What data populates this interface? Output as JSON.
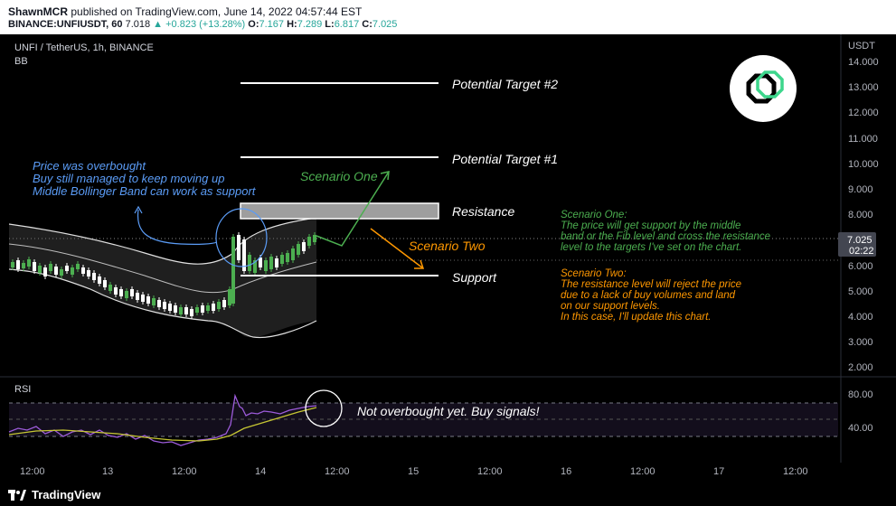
{
  "header": {
    "author": "ShawnMCR",
    "published": "published on TradingView.com, June 14, 2022 04:57:44 EST",
    "symbol": "BINANCE:UNFIUSDT, 60",
    "last": "7.018",
    "change": "+0.823 (+13.28%)",
    "o_label": "O:",
    "o": "7.167",
    "h_label": "H:",
    "h": "7.289",
    "l_label": "L:",
    "l": "6.817",
    "c_label": "C:",
    "c": "7.025"
  },
  "legend": {
    "title": "UNFI / TetherUS, 1h, BINANCE",
    "indicator": "BB",
    "rsi": "RSI"
  },
  "price_axis": {
    "currency": "USDT",
    "ticks": [
      "14.000",
      "13.000",
      "12.000",
      "11.000",
      "10.000",
      "9.000",
      "8.000",
      "7.000",
      "6.000",
      "5.000",
      "4.000",
      "3.000",
      "2.000"
    ],
    "current_price": "7.025",
    "countdown": "02:22"
  },
  "rsi_axis": {
    "ticks": [
      "80.00",
      "40.00"
    ]
  },
  "time_axis": {
    "ticks": [
      "12:00",
      "13",
      "12:00",
      "14",
      "12:00",
      "15",
      "12:00",
      "16",
      "12:00",
      "17",
      "12:00"
    ]
  },
  "annotations": {
    "target2": "Potential Target #2",
    "target1": "Potential Target #1",
    "resistance": "Resistance",
    "support": "Support",
    "scenario_one_label": "Scenario One",
    "scenario_two_label": "Scenario Two",
    "overbought": [
      "Price was overbought",
      "Buy still managed to keep moving up",
      "Middle Bollinger Band can work as support"
    ],
    "scenario_one_text": [
      "Scenario One:",
      "The price will get support by the middle",
      "band or the Fib level and cross the resistance",
      "level to the targets I've set on the chart."
    ],
    "scenario_two_text": [
      "Scenario Two:",
      "The resistance level will reject the price",
      "due to a lack of buy volumes and land",
      "on our support levels.",
      "In this case, I'll update this chart."
    ],
    "rsi_note": "Not overbought yet. Buy signals!"
  },
  "footer": {
    "brand": "TradingView"
  },
  "colors": {
    "up": "#26a69a",
    "candle_up": "#4caf50",
    "scenario_one": "#4caf50",
    "scenario_two": "#ff9800",
    "note_blue": "#5b9cf6",
    "rsi_line": "#9c5bd9",
    "rsi_ma": "#c6c633"
  }
}
